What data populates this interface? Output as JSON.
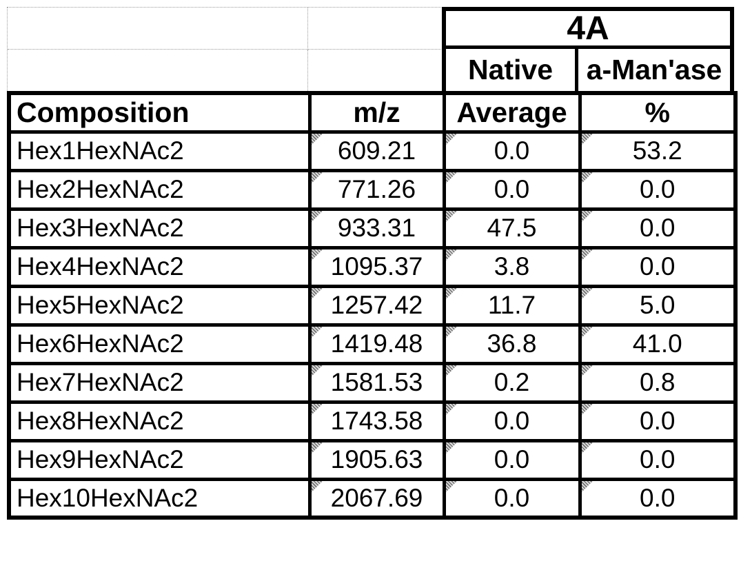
{
  "colors": {
    "background": "#ffffff",
    "border": "#000000",
    "text": "#000000",
    "gridline_dotted": "#999999",
    "corner_indicator_gray": "#8a8a8a"
  },
  "table": {
    "group_header": "4A",
    "sub_headers": [
      "Native",
      "a-Man'ase"
    ],
    "columns": [
      "Composition",
      "m/z",
      "Average",
      "%"
    ],
    "rows": [
      {
        "composition": "Hex1HexNAc2",
        "mz": "609.21",
        "native_average": "0.0",
        "amanase_percent": "53.2"
      },
      {
        "composition": "Hex2HexNAc2",
        "mz": "771.26",
        "native_average": "0.0",
        "amanase_percent": "0.0"
      },
      {
        "composition": "Hex3HexNAc2",
        "mz": "933.31",
        "native_average": "47.5",
        "amanase_percent": "0.0"
      },
      {
        "composition": "Hex4HexNAc2",
        "mz": "1095.37",
        "native_average": "3.8",
        "amanase_percent": "0.0"
      },
      {
        "composition": "Hex5HexNAc2",
        "mz": "1257.42",
        "native_average": "11.7",
        "amanase_percent": "5.0"
      },
      {
        "composition": "Hex6HexNAc2",
        "mz": "1419.48",
        "native_average": "36.8",
        "amanase_percent": "41.0"
      },
      {
        "composition": "Hex7HexNAc2",
        "mz": "1581.53",
        "native_average": "0.2",
        "amanase_percent": "0.8"
      },
      {
        "composition": "Hex8HexNAc2",
        "mz": "1743.58",
        "native_average": "0.0",
        "amanase_percent": "0.0"
      },
      {
        "composition": "Hex9HexNAc2",
        "mz": "1905.63",
        "native_average": "0.0",
        "amanase_percent": "0.0"
      },
      {
        "composition": "Hex10HexNAc2",
        "mz": "2067.69",
        "native_average": "0.0",
        "amanase_percent": "0.0"
      }
    ]
  }
}
